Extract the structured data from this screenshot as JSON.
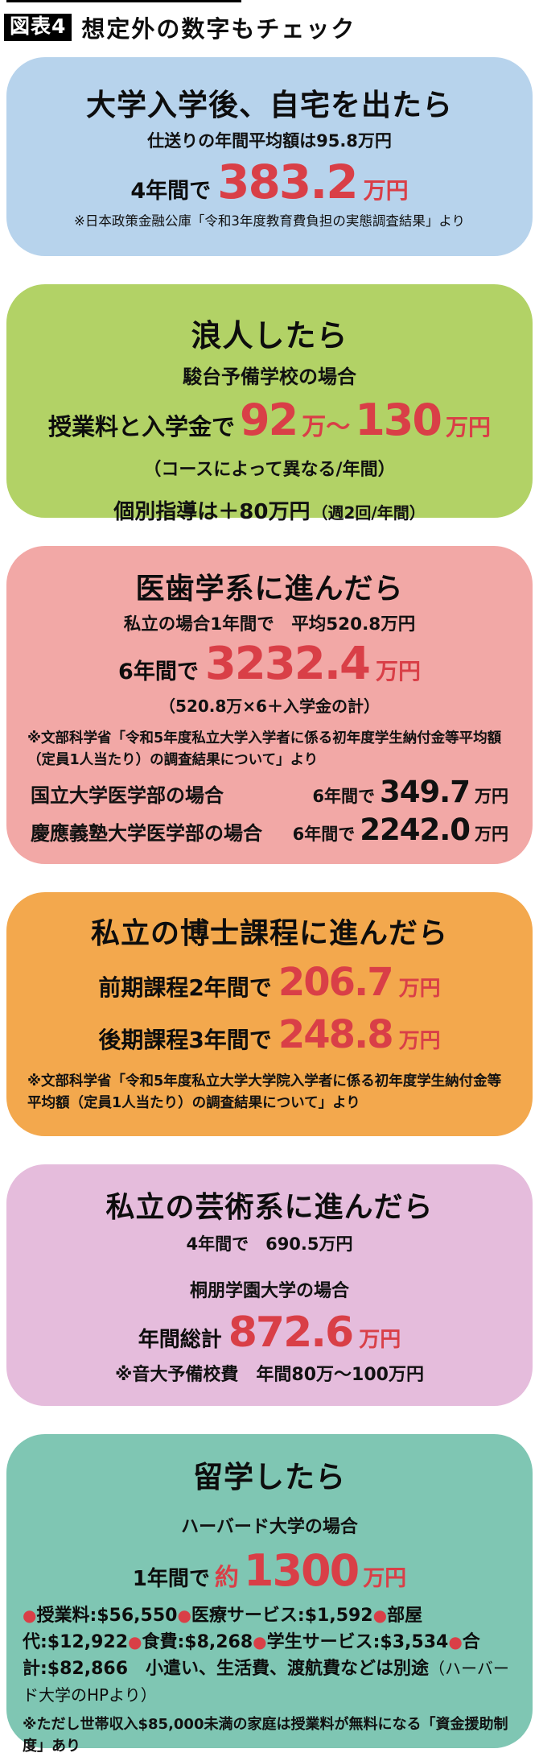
{
  "palette": {
    "accent_red": "#d93f47",
    "card_blue": "#b7d3ec",
    "card_green": "#b2d266",
    "card_salmon": "#f2a8a6",
    "card_orange": "#f3a84d",
    "card_mauve": "#e5bcdc",
    "card_teal": "#7fc6b3",
    "text": "#111111"
  },
  "header": {
    "tag": "図表4",
    "title": "想定外の数字もチェック"
  },
  "cards": [
    {
      "title": "大学入学後、自宅を出たら",
      "subtitle": "仕送りの年間平均額は95.8万円",
      "amount": {
        "prefix": "4年間で",
        "value": "383.2",
        "unit": "万円"
      },
      "footnote": "※日本政策金融公庫「令和3年度教育費負担の実態調査結果」より"
    },
    {
      "title": "浪人したら",
      "subtitle": "駿台予備学校の場合",
      "amount": {
        "prefix": "授業料と入学金で",
        "value1": "92",
        "mid": "万〜",
        "value2": "130",
        "unit": "万円"
      },
      "note": "（コースによって異なる/年間）",
      "extra_bold": "個別指導は＋80万円",
      "extra_light": "（週2回/年間）"
    },
    {
      "title": "医歯学系に進んだら",
      "subtitle": "私立の場合1年間で　平均520.8万円",
      "amount": {
        "prefix": "6年間で",
        "value": "3232.4",
        "unit": "万円"
      },
      "note": "（520.8万×6＋入学金の計）",
      "footnote": "※文部科学省「令和5年度私立大学入学者に係る初年度学生納付金等平均額（定員1人当たり）の調査結果について」より",
      "rows": [
        {
          "label": "国立大学医学部の場合",
          "prefix": "6年間で",
          "value": "349.7",
          "unit": "万円"
        },
        {
          "label": "慶應義塾大学医学部の場合",
          "prefix": "6年間で",
          "value": "2242.0",
          "unit": "万円"
        }
      ]
    },
    {
      "title": "私立の博士課程に進んだら",
      "rows": [
        {
          "prefix": "前期課程2年間で",
          "value": "206.7",
          "unit": "万円"
        },
        {
          "prefix": "後期課程3年間で",
          "value": "248.8",
          "unit": "万円"
        }
      ],
      "footnote": "※文部科学省「令和5年度私立大学大学院入学者に係る初年度学生納付金等平均額（定員1人当たり）の調査結果について」より"
    },
    {
      "title": "私立の芸術系に進んだら",
      "subtitle": "4年間で　690.5万円",
      "subtitle2": "桐朋学園大学の場合",
      "amount": {
        "prefix": "年間総計",
        "value": "872.6",
        "unit": "万円"
      },
      "note": "※音大予備校費　年間80万〜100万円"
    },
    {
      "title": "留学したら",
      "subtitle": "ハーバード大学の場合",
      "amount": {
        "prefix": "1年間で",
        "approx": "約",
        "value": "1300",
        "unit": "万円"
      },
      "details": [
        "授業料:$56,550",
        "医療サービス:$1,592",
        "部屋代:$12,922",
        "食費:$8,268",
        "学生サービス:$3,534",
        "合計:$82,866"
      ],
      "details_suffix_bold": "　小遣い、生活費、渡航費などは別途",
      "details_suffix_light": "（ハーバード大学のHPより）",
      "footnote": "※ただし世帯収入$85,000未満の家庭は授業料が無料になる「資金援助制度」あり"
    }
  ]
}
